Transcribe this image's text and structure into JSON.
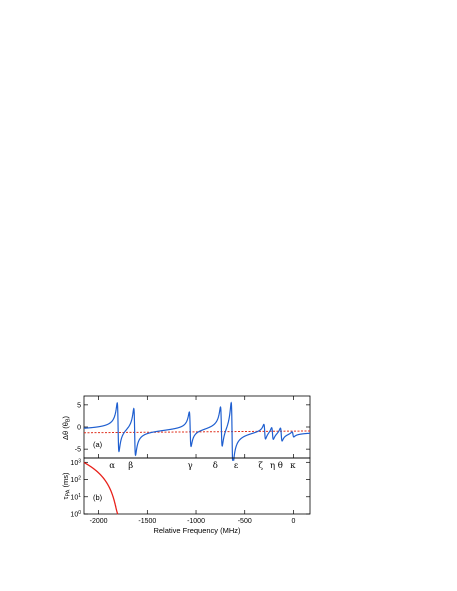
{
  "chart_data": [
    {
      "panel": "a",
      "type": "line",
      "panel_label": "(a)",
      "ylabel": "Δθ (θ",
      "ylabel_sub": "B",
      "ylabel_end": ")",
      "xlim": [
        -2150,
        170
      ],
      "ylim": [
        -7,
        7
      ],
      "y_ticks": [
        5,
        0,
        -5
      ],
      "y_tick_labels": [
        "5",
        "0",
        "-5"
      ],
      "x_ticks": [
        -2000,
        -1500,
        -1000,
        -500,
        0
      ],
      "baseline": -1,
      "series": [
        {
          "line_color": "#1f5fd0",
          "resonances": [
            {
              "x0": -1800,
              "amp": 5.5
            },
            {
              "x0": -1630,
              "amp": 5.3
            },
            {
              "x0": -1060,
              "amp": 3.9
            },
            {
              "x0": -740,
              "amp": 4.5
            },
            {
              "x0": -630,
              "amp": 7.2
            },
            {
              "x0": -295,
              "amp": 1.7
            },
            {
              "x0": -215,
              "amp": 1.4
            },
            {
              "x0": -125,
              "amp": 1.5
            },
            {
              "x0": -5,
              "amp": 0.6
            }
          ]
        }
      ],
      "reference_color": "#e0301e",
      "x_min_data": -2150,
      "x_max_data": 170
    },
    {
      "panel": "b",
      "type": "line",
      "panel_label": "(b)",
      "ylabel": "τ",
      "ylabel_sub": "PA",
      "ylabel_end": " (ms)",
      "xlabel": "Relative Frequency (MHz)",
      "xlim": [
        -2150,
        170
      ],
      "ylim_log10": [
        0,
        3.25
      ],
      "y_tick_base": "10",
      "y_tick_exponents": [
        "3",
        "2",
        "1",
        "0"
      ],
      "x_ticks": [
        -2000,
        -1500,
        -1000,
        -500,
        0
      ],
      "x_tick_labels": [
        "-2000",
        "-1500",
        "-1000",
        "-500",
        "0"
      ],
      "line_color": "#e8201a",
      "dips": [
        {
          "x0": -1800,
          "label": "α"
        },
        {
          "x0": -1630,
          "label": "β"
        },
        {
          "x0": -1060,
          "label": "γ"
        },
        {
          "x0": -740,
          "label": "δ"
        },
        {
          "x0": -630,
          "label": "ε"
        },
        {
          "x0": -295,
          "label": "ζ"
        },
        {
          "x0": -215,
          "label": "η"
        },
        {
          "x0": -125,
          "label": "θ"
        },
        {
          "x0": -5,
          "label": "κ"
        }
      ]
    }
  ]
}
